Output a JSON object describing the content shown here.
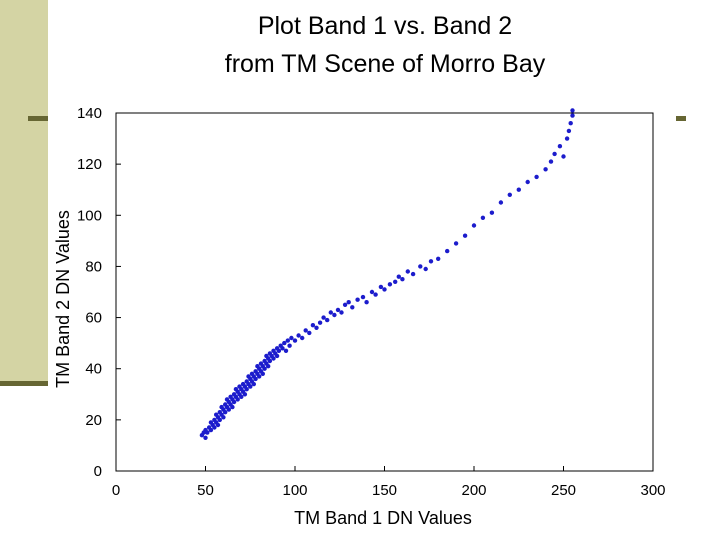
{
  "slide": {
    "accent_color": "#d4d4a4",
    "rule_color": "#666633"
  },
  "chart_data": {
    "type": "scatter",
    "title_lines": [
      "Plot Band 1 vs. Band 2",
      "from TM Scene of Morro Bay"
    ],
    "xlabel": "TM Band 1 DN Values",
    "ylabel": "TM Band 2 DN Values",
    "xlim": [
      0,
      300
    ],
    "ylim": [
      0,
      140
    ],
    "xticks": [
      0,
      50,
      100,
      150,
      200,
      250,
      300
    ],
    "yticks": [
      0,
      20,
      40,
      60,
      80,
      100,
      120,
      140
    ],
    "grid": false,
    "point_color": "#1c1ccc",
    "points": [
      [
        48,
        14
      ],
      [
        49,
        15
      ],
      [
        50,
        13
      ],
      [
        50,
        16
      ],
      [
        51,
        15
      ],
      [
        52,
        17
      ],
      [
        53,
        16
      ],
      [
        53,
        19
      ],
      [
        54,
        18
      ],
      [
        55,
        20
      ],
      [
        55,
        17
      ],
      [
        56,
        19
      ],
      [
        56,
        22
      ],
      [
        57,
        21
      ],
      [
        57,
        18
      ],
      [
        58,
        23
      ],
      [
        58,
        20
      ],
      [
        59,
        22
      ],
      [
        59,
        25
      ],
      [
        60,
        24
      ],
      [
        60,
        21
      ],
      [
        61,
        26
      ],
      [
        61,
        23
      ],
      [
        62,
        25
      ],
      [
        62,
        28
      ],
      [
        63,
        27
      ],
      [
        63,
        24
      ],
      [
        64,
        26
      ],
      [
        64,
        29
      ],
      [
        65,
        28
      ],
      [
        65,
        25
      ],
      [
        66,
        30
      ],
      [
        66,
        27
      ],
      [
        67,
        29
      ],
      [
        67,
        32
      ],
      [
        68,
        31
      ],
      [
        68,
        28
      ],
      [
        69,
        30
      ],
      [
        69,
        33
      ],
      [
        70,
        32
      ],
      [
        70,
        29
      ],
      [
        71,
        34
      ],
      [
        71,
        31
      ],
      [
        72,
        33
      ],
      [
        72,
        30
      ],
      [
        73,
        35
      ],
      [
        73,
        32
      ],
      [
        74,
        34
      ],
      [
        74,
        37
      ],
      [
        75,
        36
      ],
      [
        75,
        33
      ],
      [
        76,
        35
      ],
      [
        76,
        38
      ],
      [
        77,
        37
      ],
      [
        77,
        34
      ],
      [
        78,
        39
      ],
      [
        78,
        36
      ],
      [
        79,
        38
      ],
      [
        79,
        41
      ],
      [
        80,
        40
      ],
      [
        80,
        37
      ],
      [
        81,
        42
      ],
      [
        81,
        39
      ],
      [
        82,
        41
      ],
      [
        82,
        38
      ],
      [
        83,
        43
      ],
      [
        83,
        40
      ],
      [
        84,
        42
      ],
      [
        84,
        45
      ],
      [
        85,
        44
      ],
      [
        85,
        41
      ],
      [
        86,
        43
      ],
      [
        86,
        46
      ],
      [
        87,
        45
      ],
      [
        88,
        44
      ],
      [
        88,
        47
      ],
      [
        89,
        46
      ],
      [
        90,
        48
      ],
      [
        90,
        45
      ],
      [
        91,
        47
      ],
      [
        92,
        49
      ],
      [
        93,
        48
      ],
      [
        94,
        50
      ],
      [
        95,
        47
      ],
      [
        96,
        51
      ],
      [
        97,
        49
      ],
      [
        98,
        52
      ],
      [
        100,
        51
      ],
      [
        102,
        53
      ],
      [
        104,
        52
      ],
      [
        106,
        55
      ],
      [
        108,
        54
      ],
      [
        110,
        57
      ],
      [
        112,
        56
      ],
      [
        114,
        58
      ],
      [
        116,
        60
      ],
      [
        118,
        59
      ],
      [
        120,
        62
      ],
      [
        122,
        61
      ],
      [
        124,
        63
      ],
      [
        126,
        62
      ],
      [
        128,
        65
      ],
      [
        130,
        66
      ],
      [
        132,
        64
      ],
      [
        135,
        67
      ],
      [
        138,
        68
      ],
      [
        140,
        66
      ],
      [
        143,
        70
      ],
      [
        145,
        69
      ],
      [
        148,
        72
      ],
      [
        150,
        71
      ],
      [
        153,
        73
      ],
      [
        156,
        74
      ],
      [
        158,
        76
      ],
      [
        160,
        75
      ],
      [
        163,
        78
      ],
      [
        166,
        77
      ],
      [
        170,
        80
      ],
      [
        173,
        79
      ],
      [
        176,
        82
      ],
      [
        180,
        83
      ],
      [
        185,
        86
      ],
      [
        190,
        89
      ],
      [
        195,
        92
      ],
      [
        200,
        96
      ],
      [
        205,
        99
      ],
      [
        210,
        101
      ],
      [
        215,
        105
      ],
      [
        220,
        108
      ],
      [
        225,
        110
      ],
      [
        230,
        113
      ],
      [
        235,
        115
      ],
      [
        240,
        118
      ],
      [
        243,
        121
      ],
      [
        245,
        124
      ],
      [
        248,
        127
      ],
      [
        250,
        123
      ],
      [
        252,
        130
      ],
      [
        253,
        133
      ],
      [
        254,
        136
      ],
      [
        255,
        139
      ],
      [
        255,
        141
      ]
    ]
  }
}
